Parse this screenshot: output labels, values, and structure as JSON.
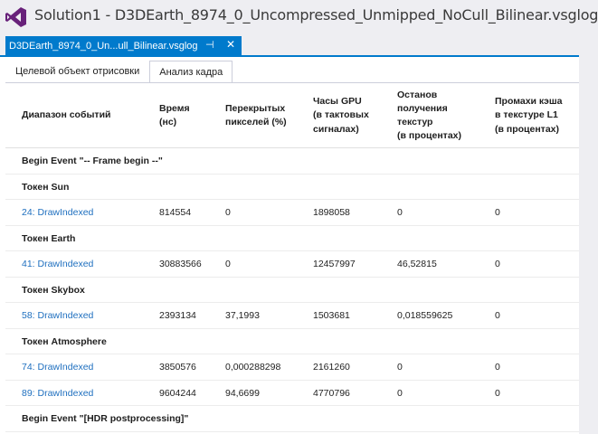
{
  "window": {
    "title": "Solution1 - D3DEarth_8974_0_Uncompressed_Unmipped_NoCull_Bilinear.vsglog"
  },
  "doc_tab": {
    "label": "D3DEarth_8974_0_Un...ull_Bilinear.vsglog",
    "pin": "⊣",
    "close": "✕"
  },
  "subtabs": [
    "Целевой объект отрисовки",
    "Анализ кадра"
  ],
  "columns": [
    "Диапазон событий",
    "Время\n(нс)",
    "Перекрытых\nпикселей (%)",
    "Часы GPU\n(в тактовых\nсигналах)",
    "Останов\nполучения\nтекстур\n(в процентах)",
    "Промахи кэша\nв текстуре L1\n(в процентах)"
  ],
  "rows": [
    {
      "type": "group",
      "label": "Begin Event \"-- Frame begin --\""
    },
    {
      "type": "group",
      "label": "Токен Sun"
    },
    {
      "type": "data",
      "event": "24: DrawIndexed",
      "time": "814554",
      "overdraw": "0",
      "gpu": "1898058",
      "stall": "0",
      "miss": "0"
    },
    {
      "type": "group",
      "label": "Токен Earth"
    },
    {
      "type": "data",
      "event": "41: DrawIndexed",
      "time": "30883566",
      "overdraw": "0",
      "gpu": "12457997",
      "stall": "46,52815",
      "miss": "0"
    },
    {
      "type": "group",
      "label": "Токен Skybox"
    },
    {
      "type": "data",
      "event": "58: DrawIndexed",
      "time": "2393134",
      "overdraw": "37,1993",
      "gpu": "1503681",
      "stall": "0,018559625",
      "miss": "0"
    },
    {
      "type": "group",
      "label": "Токен Atmosphere"
    },
    {
      "type": "data",
      "event": "74: DrawIndexed",
      "time": "3850576",
      "overdraw": "0,000288298",
      "gpu": "2161260",
      "stall": "0",
      "miss": "0"
    },
    {
      "type": "data",
      "event": "89: DrawIndexed",
      "time": "9604244",
      "overdraw": "94,6699",
      "gpu": "4770796",
      "stall": "0",
      "miss": "0"
    },
    {
      "type": "group",
      "label": "Begin Event \"[HDR postprocessing]\""
    }
  ],
  "colors": {
    "accent": "#007acc",
    "link": "#1e6fbf",
    "logo": "#68217a"
  },
  "icons": {
    "logo": "visual-studio-logo-icon"
  }
}
